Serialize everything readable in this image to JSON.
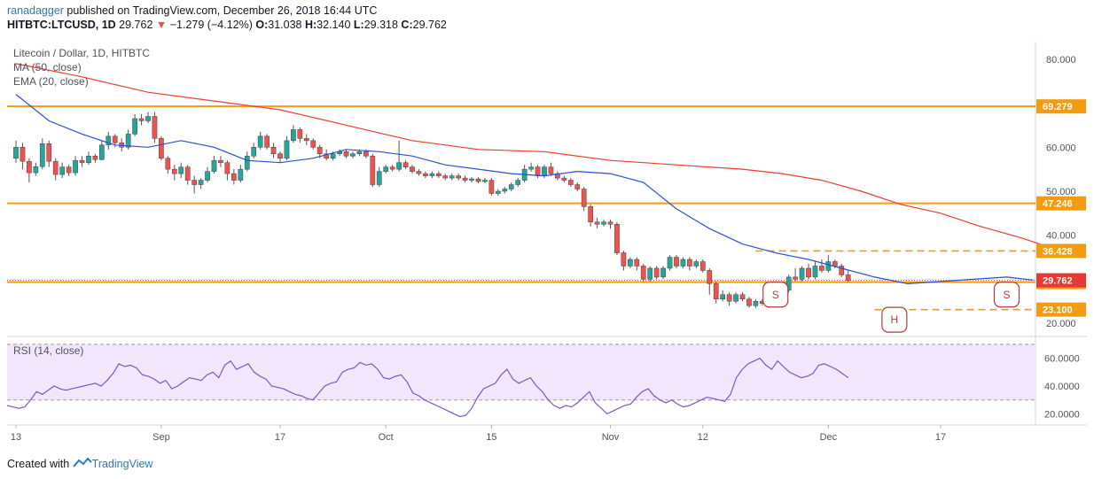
{
  "header": {
    "user": "ranadagger",
    "published": " published on TradingView.com, December 26, 2018 16:44 UTC",
    "symbol": "HITBTC:LTCUSD, 1D",
    "close": "29.762",
    "arrow": "▼",
    "change": "−1.279 (−4.12%)",
    "o_label": "O:",
    "o": "31.038",
    "h_label": "H:",
    "h": "32.140",
    "l_label": "L:",
    "l": "29.318",
    "c_label": "C:",
    "c": "29.762"
  },
  "legend": {
    "title": "Litecoin / Dollar, 1D, HITBTC",
    "ma": "MA (50, close)",
    "ema": "EMA (20, close)",
    "rsi": "RSI (14, close)"
  },
  "footer": {
    "created": "Created with",
    "brand": "TradingView"
  },
  "colors": {
    "up": "#26a69a",
    "down": "#ef5350",
    "ma": "#ef3b30",
    "ema": "#2a4fd6",
    "level": "#f39c12",
    "rsi_line": "#7e57c2",
    "rsi_band": "#f1e6fb",
    "last": "#e53935"
  },
  "chart_data": {
    "type": "candlestick",
    "y_axis": {
      "ticks": [
        "80.000",
        "70.000",
        "60.000",
        "50.000",
        "40.000",
        "30.000",
        "20.000"
      ],
      "values": [
        80,
        70,
        60,
        50,
        40,
        30,
        20
      ],
      "ylim": [
        17,
        84
      ]
    },
    "x_axis": {
      "ticks": [
        "13",
        "Sep",
        "17",
        "Oct",
        "15",
        "Nov",
        "12",
        "Dec",
        "17"
      ],
      "tick_index": [
        0,
        22,
        40,
        56,
        72,
        90,
        104,
        123,
        140
      ]
    },
    "levels": [
      {
        "label": "69.279",
        "value": 69.279,
        "style": "solid",
        "start": 0
      },
      {
        "label": "47.246",
        "value": 47.246,
        "style": "solid",
        "start": 0
      },
      {
        "label": "36.428",
        "value": 36.428,
        "style": "dashed",
        "start": 112
      },
      {
        "label": "29.349",
        "value": 29.349,
        "style": "solid",
        "start": 0
      },
      {
        "label": "23.100",
        "value": 23.1,
        "style": "dashed",
        "start": 130
      }
    ],
    "last_price": {
      "label": "29.762",
      "value": 29.762
    },
    "pattern_labels": [
      {
        "text": "S",
        "index": 115,
        "value": 26.5
      },
      {
        "text": "H",
        "index": 133,
        "value": 20.8
      },
      {
        "text": "S",
        "index": 150,
        "value": 26.5
      }
    ],
    "rsi": {
      "ticks": [
        "60.0000",
        "40.0000",
        "20.0000"
      ],
      "tick_values": [
        60,
        40,
        20
      ],
      "overbought": 70,
      "oversold": 30,
      "ylim": [
        12,
        75
      ],
      "values": [
        26,
        25,
        24,
        25,
        30,
        36,
        34,
        37,
        40,
        38,
        37,
        38,
        39,
        40,
        41,
        42,
        40,
        44,
        49,
        56,
        54,
        55,
        53,
        48,
        47,
        45,
        42,
        44,
        38,
        40,
        43,
        46,
        45,
        44,
        48,
        50,
        46,
        55,
        58,
        52,
        54,
        56,
        50,
        47,
        45,
        40,
        39,
        38,
        36,
        34,
        33,
        31,
        30,
        35,
        40,
        42,
        43,
        50,
        52,
        53,
        57,
        55,
        56,
        52,
        46,
        45,
        47,
        48,
        43,
        35,
        33,
        30,
        28,
        26,
        24,
        22,
        20,
        18,
        19,
        24,
        32,
        38,
        40,
        42,
        48,
        52,
        45,
        42,
        44,
        46,
        40,
        36,
        30,
        26,
        24,
        26,
        25,
        28,
        32,
        36,
        28,
        24,
        20,
        22,
        24,
        26,
        27,
        32,
        36,
        38,
        33,
        30,
        28,
        30,
        27,
        25,
        26,
        28,
        30,
        32,
        31,
        30,
        29,
        34,
        46,
        52,
        56,
        58,
        60,
        55,
        52,
        58,
        54,
        50,
        48,
        46,
        47,
        49,
        55,
        56,
        54,
        52,
        49,
        46
      ]
    },
    "candles": [
      [
        57.5,
        60.0,
        61.5,
        56.5
      ],
      [
        60.0,
        56.8,
        61.0,
        55.0
      ],
      [
        56.8,
        54.2,
        57.5,
        52.0
      ],
      [
        54.2,
        55.6,
        56.5,
        53.5
      ],
      [
        55.6,
        60.8,
        62.0,
        55.0
      ],
      [
        60.8,
        56.8,
        61.5,
        55.5
      ],
      [
        56.8,
        53.8,
        57.5,
        52.5
      ],
      [
        53.8,
        55.5,
        56.5,
        53.0
      ],
      [
        55.5,
        54.2,
        56.0,
        53.5
      ],
      [
        54.2,
        57.0,
        58.0,
        53.5
      ],
      [
        57.0,
        56.5,
        58.0,
        55.5
      ],
      [
        56.5,
        58.0,
        59.0,
        56.0
      ],
      [
        58.0,
        57.2,
        58.5,
        56.5
      ],
      [
        57.2,
        60.5,
        61.5,
        57.0
      ],
      [
        60.5,
        62.5,
        63.5,
        59.5
      ],
      [
        62.5,
        61.0,
        63.0,
        60.0
      ],
      [
        61.0,
        60.0,
        62.0,
        59.0
      ],
      [
        60.0,
        63.0,
        64.0,
        59.5
      ],
      [
        63.0,
        66.5,
        67.5,
        62.5
      ],
      [
        66.5,
        66.0,
        67.5,
        65.0
      ],
      [
        66.0,
        67.0,
        68.0,
        65.5
      ],
      [
        67.0,
        62.0,
        68.0,
        61.0
      ],
      [
        62.0,
        57.5,
        62.5,
        57.0
      ],
      [
        57.5,
        55.0,
        58.0,
        54.0
      ],
      [
        55.0,
        54.0,
        56.0,
        52.5
      ],
      [
        54.0,
        55.5,
        56.5,
        53.0
      ],
      [
        55.5,
        52.5,
        56.0,
        51.5
      ],
      [
        52.5,
        51.5,
        53.5,
        49.5
      ],
      [
        51.5,
        52.5,
        53.0,
        50.5
      ],
      [
        52.5,
        54.5,
        55.5,
        52.0
      ],
      [
        54.5,
        57.0,
        58.0,
        54.0
      ],
      [
        57.0,
        56.5,
        58.0,
        55.5
      ],
      [
        56.5,
        54.0,
        57.0,
        52.5
      ],
      [
        54.0,
        52.5,
        55.0,
        51.5
      ],
      [
        52.5,
        55.0,
        56.0,
        52.0
      ],
      [
        55.0,
        58.0,
        59.0,
        54.5
      ],
      [
        58.0,
        60.0,
        61.0,
        57.5
      ],
      [
        60.0,
        62.5,
        63.5,
        59.5
      ],
      [
        62.5,
        60.0,
        63.0,
        59.5
      ],
      [
        60.0,
        58.5,
        61.0,
        57.5
      ],
      [
        58.5,
        57.5,
        59.0,
        56.5
      ],
      [
        57.5,
        61.5,
        62.5,
        57.0
      ],
      [
        61.5,
        64.0,
        65.0,
        61.0
      ],
      [
        64.0,
        62.0,
        64.5,
        61.0
      ],
      [
        62.0,
        61.5,
        63.0,
        60.5
      ],
      [
        61.5,
        60.0,
        62.0,
        59.5
      ],
      [
        60.0,
        58.5,
        60.5,
        57.5
      ],
      [
        58.5,
        57.5,
        59.5,
        57.0
      ],
      [
        57.5,
        58.5,
        59.0,
        57.0
      ],
      [
        58.5,
        59.0,
        59.5,
        58.0
      ],
      [
        59.0,
        58.0,
        59.5,
        57.5
      ],
      [
        58.0,
        58.5,
        59.0,
        57.5
      ],
      [
        58.5,
        59.0,
        59.5,
        58.0
      ],
      [
        59.0,
        58.0,
        59.5,
        57.5
      ],
      [
        58.0,
        51.5,
        58.5,
        51.0
      ],
      [
        51.5,
        54.5,
        55.5,
        51.0
      ],
      [
        54.5,
        55.5,
        56.0,
        54.0
      ],
      [
        55.5,
        55.0,
        56.0,
        54.5
      ],
      [
        55.0,
        56.5,
        61.5,
        54.5
      ],
      [
        56.5,
        55.5,
        57.0,
        55.0
      ],
      [
        55.5,
        54.5,
        56.0,
        54.0
      ],
      [
        54.5,
        54.0,
        55.0,
        53.5
      ],
      [
        54.0,
        53.5,
        54.5,
        53.0
      ],
      [
        53.5,
        54.0,
        54.5,
        53.0
      ],
      [
        54.0,
        53.5,
        54.5,
        53.0
      ],
      [
        53.5,
        53.0,
        54.0,
        52.5
      ],
      [
        53.0,
        53.5,
        54.0,
        52.5
      ],
      [
        53.5,
        53.0,
        54.0,
        52.5
      ],
      [
        53.0,
        52.5,
        53.5,
        52.0
      ],
      [
        52.5,
        52.8,
        53.2,
        52.0
      ],
      [
        52.8,
        52.2,
        53.2,
        51.8
      ],
      [
        52.2,
        52.5,
        53.0,
        51.8
      ],
      [
        52.5,
        49.5,
        53.0,
        49.0
      ],
      [
        49.5,
        50.0,
        50.5,
        49.0
      ],
      [
        50.0,
        50.5,
        51.0,
        49.5
      ],
      [
        50.5,
        51.5,
        52.0,
        50.0
      ],
      [
        51.5,
        52.5,
        53.0,
        51.0
      ],
      [
        52.5,
        55.0,
        56.0,
        52.0
      ],
      [
        55.0,
        55.5,
        56.5,
        54.5
      ],
      [
        55.5,
        53.5,
        56.0,
        53.0
      ],
      [
        53.5,
        55.5,
        56.0,
        53.0
      ],
      [
        55.5,
        54.0,
        56.5,
        53.5
      ],
      [
        54.0,
        53.0,
        54.5,
        52.5
      ],
      [
        53.0,
        52.5,
        53.5,
        52.0
      ],
      [
        52.5,
        51.5,
        53.0,
        51.0
      ],
      [
        51.5,
        50.5,
        52.0,
        50.0
      ],
      [
        50.5,
        46.5,
        51.0,
        45.5
      ],
      [
        46.5,
        43.0,
        47.0,
        42.0
      ],
      [
        43.0,
        42.5,
        44.0,
        41.5
      ],
      [
        42.5,
        43.0,
        43.5,
        42.0
      ],
      [
        43.0,
        42.5,
        43.5,
        41.5
      ],
      [
        42.5,
        36.0,
        43.0,
        35.5
      ],
      [
        36.0,
        33.0,
        36.5,
        32.0
      ],
      [
        33.0,
        34.5,
        35.0,
        32.5
      ],
      [
        34.5,
        33.0,
        35.0,
        32.0
      ],
      [
        33.0,
        30.0,
        33.5,
        29.5
      ],
      [
        30.0,
        32.5,
        33.0,
        29.5
      ],
      [
        32.5,
        30.5,
        33.0,
        30.0
      ],
      [
        30.5,
        32.5,
        33.0,
        30.0
      ],
      [
        32.5,
        35.0,
        35.5,
        32.0
      ],
      [
        35.0,
        33.0,
        35.5,
        32.5
      ],
      [
        33.0,
        34.5,
        35.0,
        32.5
      ],
      [
        34.5,
        33.0,
        35.0,
        32.0
      ],
      [
        33.0,
        34.0,
        34.5,
        32.5
      ],
      [
        34.0,
        32.0,
        34.5,
        31.5
      ],
      [
        32.0,
        29.0,
        32.5,
        26.5
      ],
      [
        29.0,
        25.5,
        29.5,
        24.5
      ],
      [
        25.5,
        26.5,
        27.5,
        25.0
      ],
      [
        26.5,
        25.0,
        27.0,
        24.0
      ],
      [
        25.0,
        26.5,
        27.0,
        24.5
      ],
      [
        26.5,
        25.5,
        27.0,
        25.0
      ],
      [
        25.5,
        24.0,
        26.0,
        23.5
      ],
      [
        24.0,
        25.0,
        25.5,
        23.5
      ],
      [
        25.0,
        24.5,
        25.5,
        24.0
      ],
      [
        24.5,
        24.0,
        25.0,
        23.5
      ],
      [
        24.0,
        25.0,
        25.5,
        23.5
      ],
      [
        25.0,
        27.5,
        28.0,
        24.5
      ],
      [
        27.5,
        30.5,
        31.0,
        27.0
      ],
      [
        30.5,
        30.0,
        32.5,
        29.5
      ],
      [
        30.0,
        32.5,
        33.0,
        29.5
      ],
      [
        32.5,
        30.5,
        33.5,
        30.0
      ],
      [
        30.5,
        33.0,
        34.0,
        30.0
      ],
      [
        33.0,
        32.0,
        34.5,
        31.5
      ],
      [
        32.0,
        34.0,
        35.5,
        31.5
      ],
      [
        34.0,
        33.0,
        34.5,
        32.5
      ],
      [
        33.0,
        31.0,
        33.5,
        30.5
      ],
      [
        31.0,
        29.76,
        32.14,
        29.32
      ]
    ],
    "ma50": [
      [
        0,
        79
      ],
      [
        10,
        76
      ],
      [
        20,
        72.5
      ],
      [
        30,
        70.5
      ],
      [
        40,
        68.5
      ],
      [
        50,
        65
      ],
      [
        60,
        61.5
      ],
      [
        70,
        59.5
      ],
      [
        80,
        59
      ],
      [
        90,
        57
      ],
      [
        100,
        56
      ],
      [
        110,
        55
      ],
      [
        116,
        54
      ],
      [
        122,
        52.5
      ],
      [
        128,
        50
      ],
      [
        134,
        47
      ],
      [
        140,
        45
      ],
      [
        146,
        42
      ],
      [
        152,
        39.5
      ],
      [
        156,
        37.5
      ],
      [
        160,
        35
      ]
    ],
    "ema20": [
      [
        0,
        72
      ],
      [
        5,
        66
      ],
      [
        10,
        63
      ],
      [
        15,
        60.5
      ],
      [
        20,
        60
      ],
      [
        25,
        61.5
      ],
      [
        30,
        60
      ],
      [
        35,
        57
      ],
      [
        40,
        56.5
      ],
      [
        45,
        57.5
      ],
      [
        50,
        59.5
      ],
      [
        55,
        59
      ],
      [
        60,
        58
      ],
      [
        65,
        56
      ],
      [
        70,
        55
      ],
      [
        75,
        54
      ],
      [
        80,
        53.5
      ],
      [
        85,
        54.5
      ],
      [
        90,
        54
      ],
      [
        95,
        52
      ],
      [
        100,
        46
      ],
      [
        105,
        41.5
      ],
      [
        110,
        38
      ],
      [
        115,
        36
      ],
      [
        120,
        34.5
      ],
      [
        125,
        32.5
      ],
      [
        130,
        30.5
      ],
      [
        135,
        29
      ],
      [
        140,
        29.5
      ],
      [
        145,
        30
      ],
      [
        150,
        30.5
      ],
      [
        154,
        29.8
      ]
    ]
  }
}
